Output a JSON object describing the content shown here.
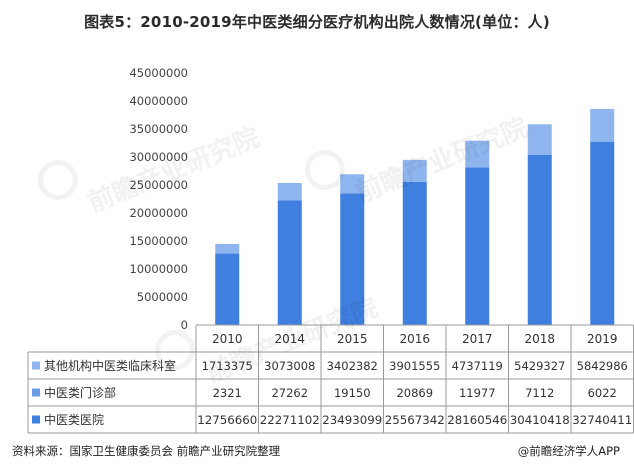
{
  "title": "图表5：2010-2019年中医类细分医疗机构出院人数情况(单位：人)",
  "chart_data": {
    "type": "bar",
    "stacked": true,
    "categories": [
      "2010",
      "2014",
      "2015",
      "2016",
      "2017",
      "2018",
      "2019"
    ],
    "ylim": [
      0,
      45000000
    ],
    "yticks": [
      "0",
      "5000000",
      "10000000",
      "15000000",
      "20000000",
      "25000000",
      "30000000",
      "35000000",
      "40000000",
      "45000000"
    ],
    "grid": false,
    "legend": "data-table",
    "series": [
      {
        "name": "中医类医院",
        "color": "#3f7fe0",
        "values": [
          12756660,
          22271102,
          23493099,
          25567342,
          28160546,
          30410418,
          32740411
        ],
        "labels": [
          "12756660",
          "22271102",
          "23493099",
          "25567342",
          "28160546",
          "30410418",
          "32740411"
        ]
      },
      {
        "name": "中医类门诊部",
        "color": "#6a9ee6",
        "values": [
          2321,
          27262,
          19150,
          20869,
          11977,
          7112,
          6022
        ],
        "labels": [
          "2321",
          "27262",
          "19150",
          "20869",
          "11977",
          "7112",
          "6022"
        ]
      },
      {
        "name": "其他机构中医类临床科室",
        "color": "#8fb5ee",
        "values": [
          1713375,
          3073008,
          3402382,
          3901555,
          4737119,
          5429327,
          5842986
        ],
        "labels": [
          "1713375",
          "3073008",
          "3402382",
          "3901555",
          "4737119",
          "5429327",
          "5842986"
        ]
      }
    ]
  },
  "footer": {
    "source": "资料来源：国家卫生健康委员会  前瞻产业研究院整理",
    "brand": "@前瞻经济学人APP"
  },
  "watermark": {
    "text": "前瞻产业研究院"
  }
}
